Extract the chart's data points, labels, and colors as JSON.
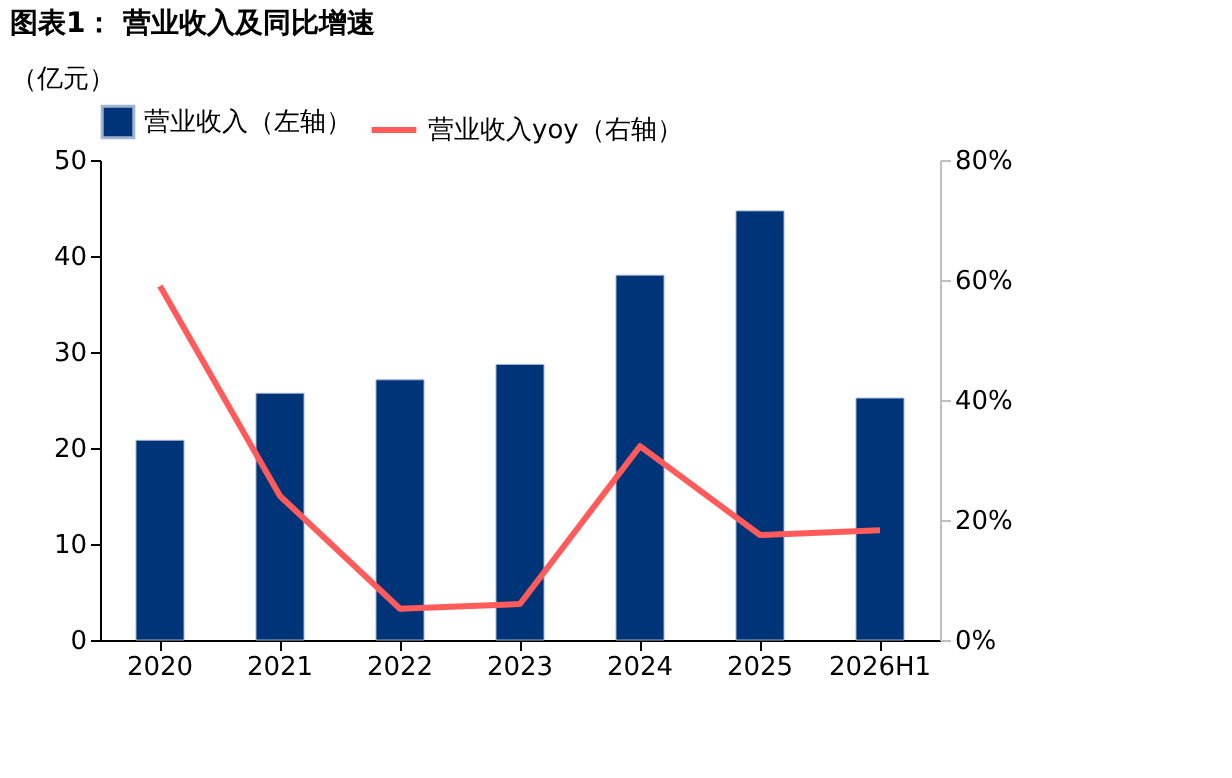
{
  "chart_data": {
    "type": "bar",
    "title": "图表1：  营业收入及同比增速",
    "ylabel": "（亿元）",
    "categories": [
      "2020",
      "2021",
      "2022",
      "2023",
      "2024",
      "2025",
      "2026H1"
    ],
    "series": [
      {
        "name": "营业收入（左轴）",
        "color": "#003478",
        "values": [
          20.8,
          25.7,
          27.1,
          28.7,
          38.0,
          44.7,
          25.2
        ]
      },
      {
        "name": "营业收入yoy（右轴）",
        "type": "line",
        "axis": "y2",
        "color": "#ff5b5b",
        "values": [
          59,
          24,
          5.2,
          6,
          32.3,
          17.5,
          18.3
        ]
      }
    ],
    "ylim": [
      0,
      50
    ],
    "yticks": [
      0,
      10,
      20,
      30,
      40,
      50
    ],
    "y2lim": [
      0,
      80
    ],
    "y2ticks": [
      {
        "value": 0,
        "label": "0%"
      },
      {
        "value": 20,
        "label": "20%"
      },
      {
        "value": 40,
        "label": "40%"
      },
      {
        "value": 60,
        "label": "60%"
      },
      {
        "value": 80,
        "label": "80%"
      }
    ],
    "grid": false,
    "legend": "top",
    "marker": "none",
    "line_style": "solid"
  }
}
